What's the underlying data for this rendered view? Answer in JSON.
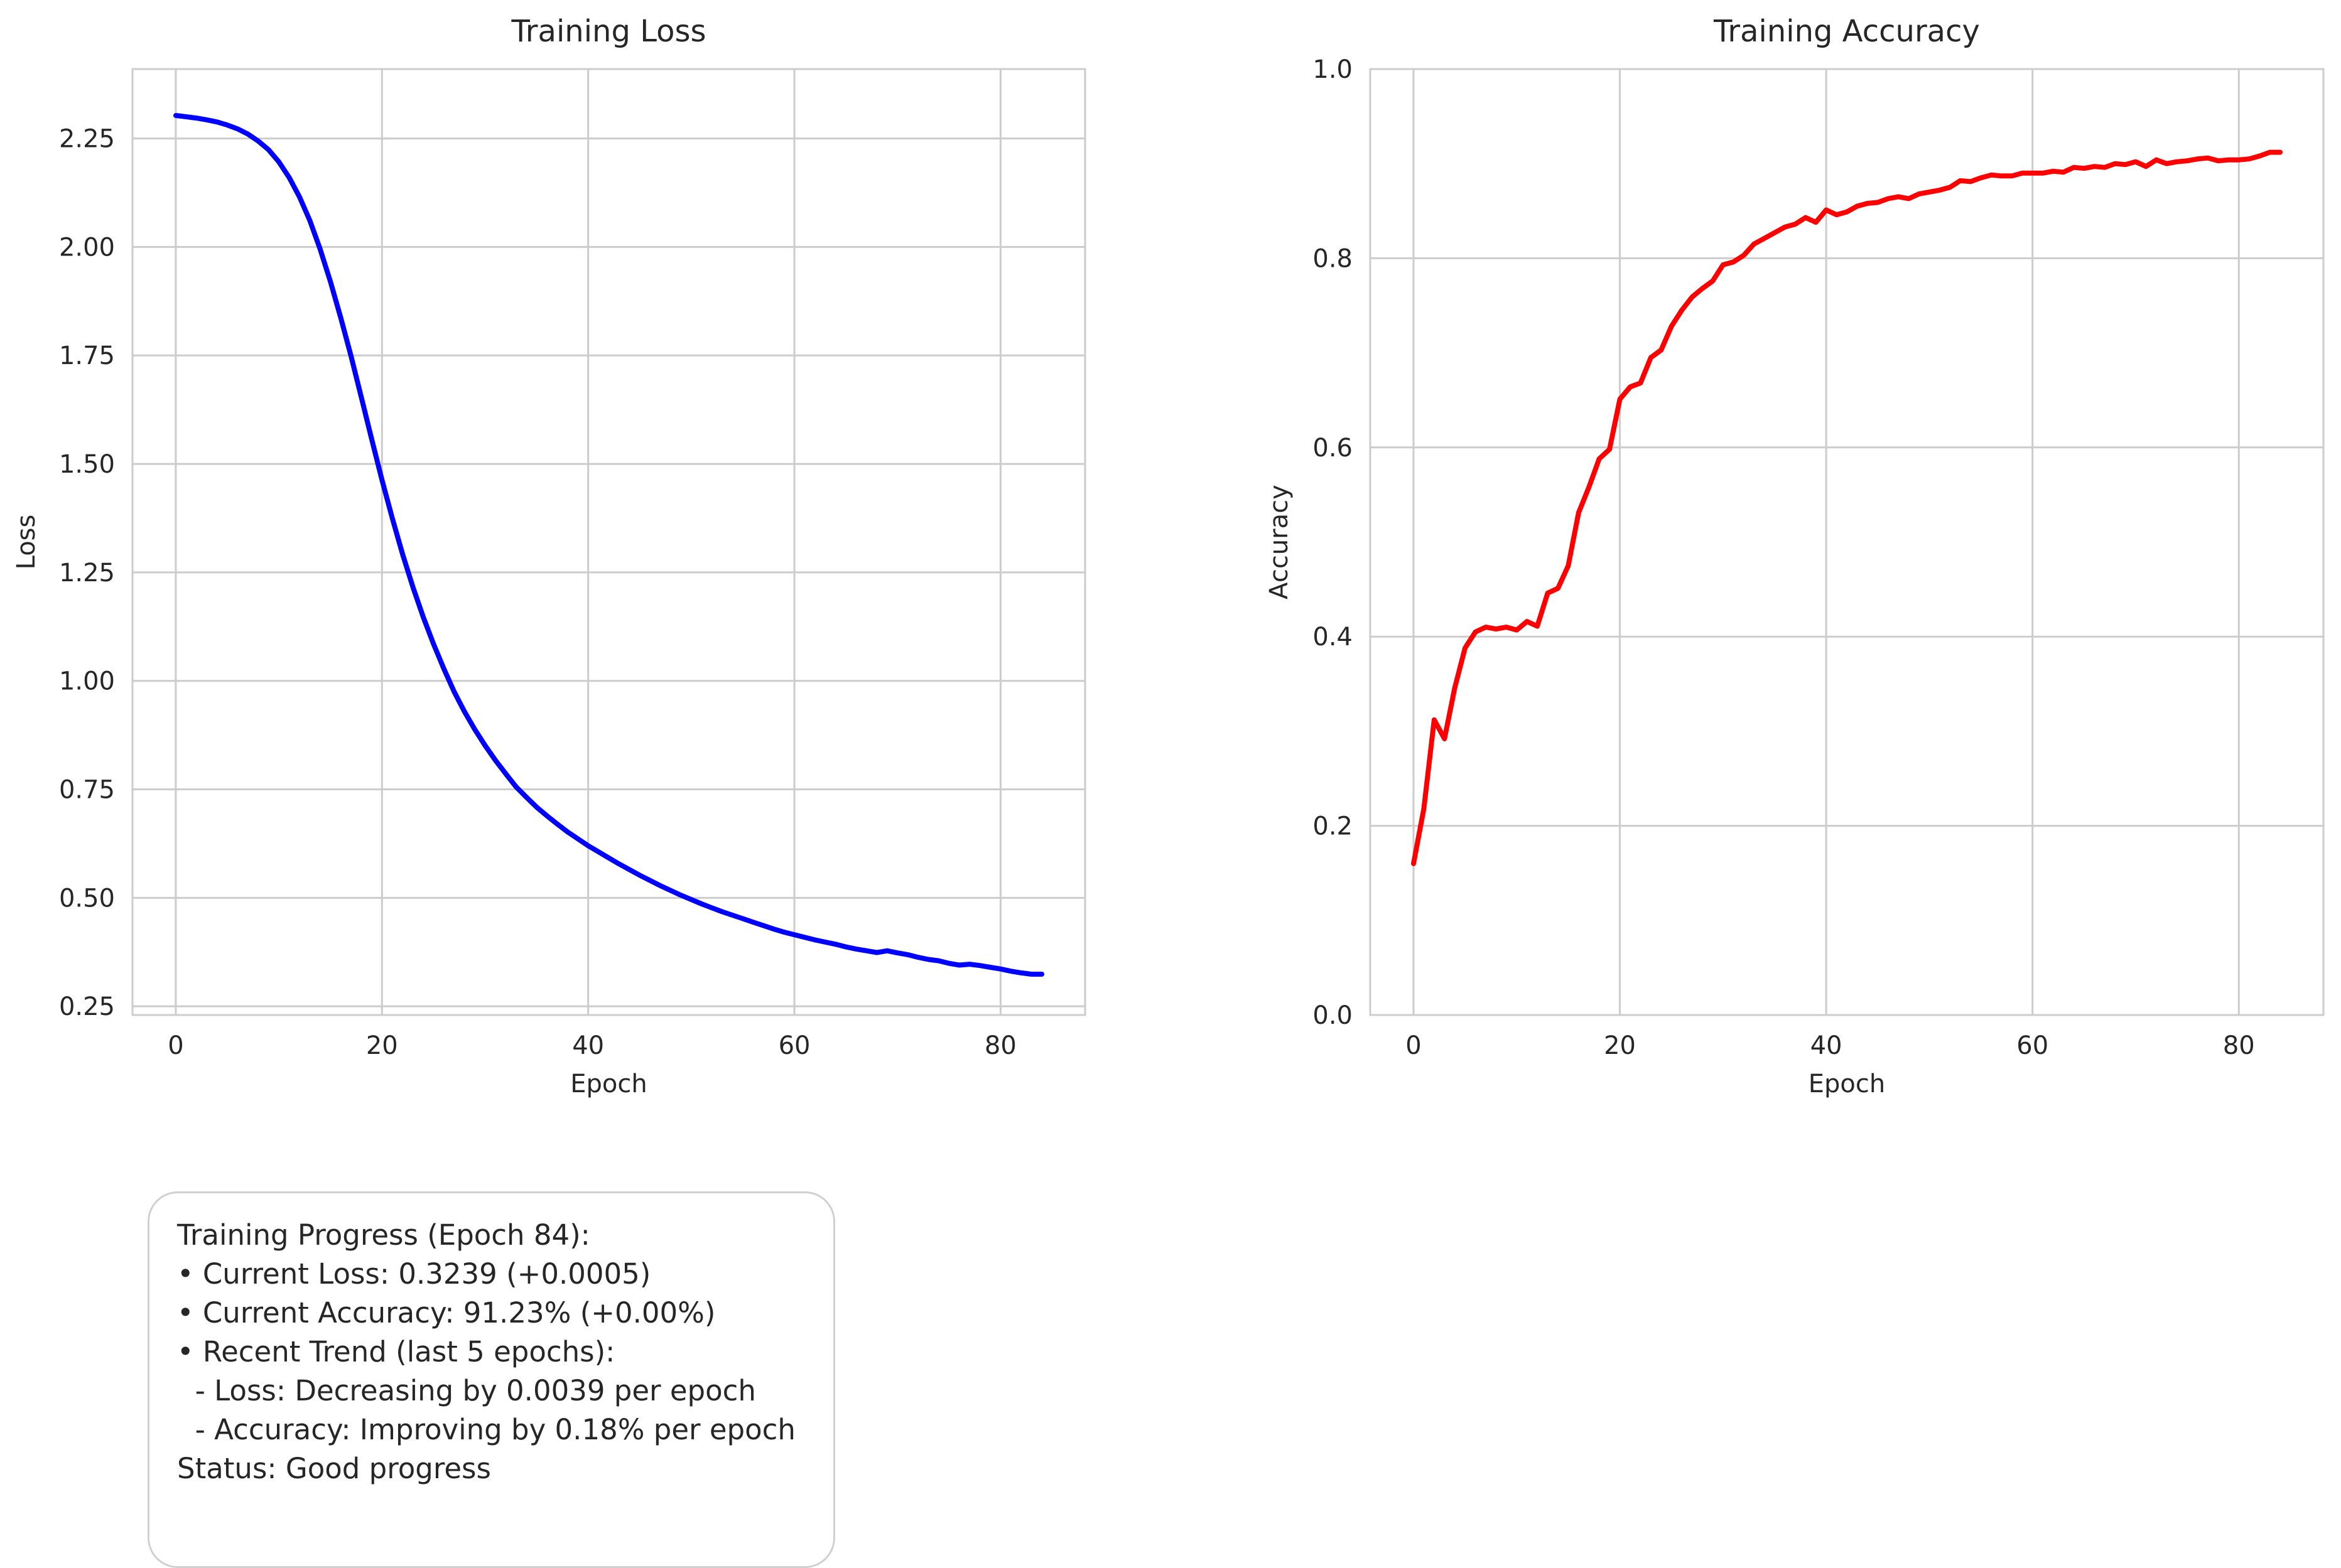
{
  "chart_data": [
    {
      "type": "line",
      "title": "Training Loss",
      "xlabel": "Epoch",
      "ylabel": "Loss",
      "xlim": [
        -4.2,
        88.2
      ],
      "ylim": [
        0.23,
        2.41
      ],
      "xticks": [
        0,
        20,
        40,
        60,
        80
      ],
      "yticks": [
        0.25,
        0.5,
        0.75,
        1.0,
        1.25,
        1.5,
        1.75,
        2.0,
        2.25
      ],
      "ytick_labels": [
        "0.25",
        "0.50",
        "0.75",
        "1.00",
        "1.25",
        "1.50",
        "1.75",
        "2.00",
        "2.25"
      ],
      "grid": true,
      "color": "#0000ff",
      "x": [
        0,
        1,
        2,
        3,
        4,
        5,
        6,
        7,
        8,
        9,
        10,
        11,
        12,
        13,
        14,
        15,
        16,
        17,
        18,
        19,
        20,
        21,
        22,
        23,
        24,
        25,
        26,
        27,
        28,
        29,
        30,
        31,
        32,
        33,
        34,
        35,
        36,
        37,
        38,
        39,
        40,
        41,
        42,
        43,
        44,
        45,
        46,
        47,
        48,
        49,
        50,
        51,
        52,
        53,
        54,
        55,
        56,
        57,
        58,
        59,
        60,
        61,
        62,
        63,
        64,
        65,
        66,
        67,
        68,
        69,
        70,
        71,
        72,
        73,
        74,
        75,
        76,
        77,
        78,
        79,
        80,
        81,
        82,
        83,
        84
      ],
      "y": [
        2.303,
        2.3,
        2.297,
        2.293,
        2.288,
        2.281,
        2.272,
        2.26,
        2.244,
        2.224,
        2.196,
        2.16,
        2.115,
        2.061,
        1.995,
        1.92,
        1.837,
        1.748,
        1.653,
        1.557,
        1.463,
        1.375,
        1.292,
        1.216,
        1.147,
        1.085,
        1.028,
        0.975,
        0.929,
        0.888,
        0.851,
        0.817,
        0.786,
        0.756,
        0.732,
        0.709,
        0.689,
        0.67,
        0.652,
        0.636,
        0.62,
        0.606,
        0.592,
        0.578,
        0.565,
        0.552,
        0.54,
        0.528,
        0.517,
        0.506,
        0.496,
        0.486,
        0.477,
        0.468,
        0.46,
        0.452,
        0.444,
        0.436,
        0.428,
        0.421,
        0.415,
        0.409,
        0.403,
        0.398,
        0.393,
        0.387,
        0.382,
        0.378,
        0.374,
        0.378,
        0.373,
        0.369,
        0.363,
        0.358,
        0.355,
        0.349,
        0.345,
        0.347,
        0.344,
        0.34,
        0.336,
        0.331,
        0.327,
        0.324,
        0.324
      ]
    },
    {
      "type": "line",
      "title": "Training Accuracy",
      "xlabel": "Epoch",
      "ylabel": "Accuracy",
      "xlim": [
        -4.2,
        88.2
      ],
      "ylim": [
        0.0,
        1.0
      ],
      "xticks": [
        0,
        20,
        40,
        60,
        80
      ],
      "yticks": [
        0.0,
        0.2,
        0.4,
        0.6,
        0.8,
        1.0
      ],
      "ytick_labels": [
        "0.0",
        "0.2",
        "0.4",
        "0.6",
        "0.8",
        "1.0"
      ],
      "grid": true,
      "color": "#ff0000",
      "x": [
        0,
        1,
        2,
        3,
        4,
        5,
        6,
        7,
        8,
        9,
        10,
        11,
        12,
        13,
        14,
        15,
        16,
        17,
        18,
        19,
        20,
        21,
        22,
        23,
        24,
        25,
        26,
        27,
        28,
        29,
        30,
        31,
        32,
        33,
        34,
        35,
        36,
        37,
        38,
        39,
        40,
        41,
        42,
        43,
        44,
        45,
        46,
        47,
        48,
        49,
        50,
        51,
        52,
        53,
        54,
        55,
        56,
        57,
        58,
        59,
        60,
        61,
        62,
        63,
        64,
        65,
        66,
        67,
        68,
        69,
        70,
        71,
        72,
        73,
        74,
        75,
        76,
        77,
        78,
        79,
        80,
        81,
        82,
        83,
        84
      ],
      "y": [
        0.16,
        0.218,
        0.312,
        0.292,
        0.346,
        0.388,
        0.405,
        0.41,
        0.408,
        0.41,
        0.407,
        0.416,
        0.411,
        0.446,
        0.451,
        0.475,
        0.531,
        0.558,
        0.588,
        0.598,
        0.651,
        0.664,
        0.668,
        0.695,
        0.703,
        0.728,
        0.745,
        0.759,
        0.768,
        0.776,
        0.793,
        0.796,
        0.803,
        0.815,
        0.821,
        0.827,
        0.833,
        0.836,
        0.843,
        0.838,
        0.851,
        0.846,
        0.849,
        0.855,
        0.858,
        0.859,
        0.863,
        0.865,
        0.863,
        0.868,
        0.87,
        0.872,
        0.875,
        0.882,
        0.881,
        0.885,
        0.888,
        0.887,
        0.887,
        0.89,
        0.89,
        0.89,
        0.892,
        0.891,
        0.896,
        0.895,
        0.897,
        0.896,
        0.9,
        0.899,
        0.902,
        0.897,
        0.904,
        0.9,
        0.902,
        0.903,
        0.905,
        0.906,
        0.903,
        0.904,
        0.904,
        0.905,
        0.908,
        0.912,
        0.912
      ]
    }
  ],
  "summary": {
    "lines": [
      "Training Progress (Epoch 84):",
      "• Current Loss: 0.3239 (+0.0005)",
      "• Current Accuracy: 91.23% (+0.00%)",
      "• Recent Trend (last 5 epochs):",
      "  - Loss: Decreasing by 0.0039 per epoch",
      "  - Accuracy: Improving by 0.18% per epoch",
      "",
      "Status: Good progress"
    ]
  }
}
